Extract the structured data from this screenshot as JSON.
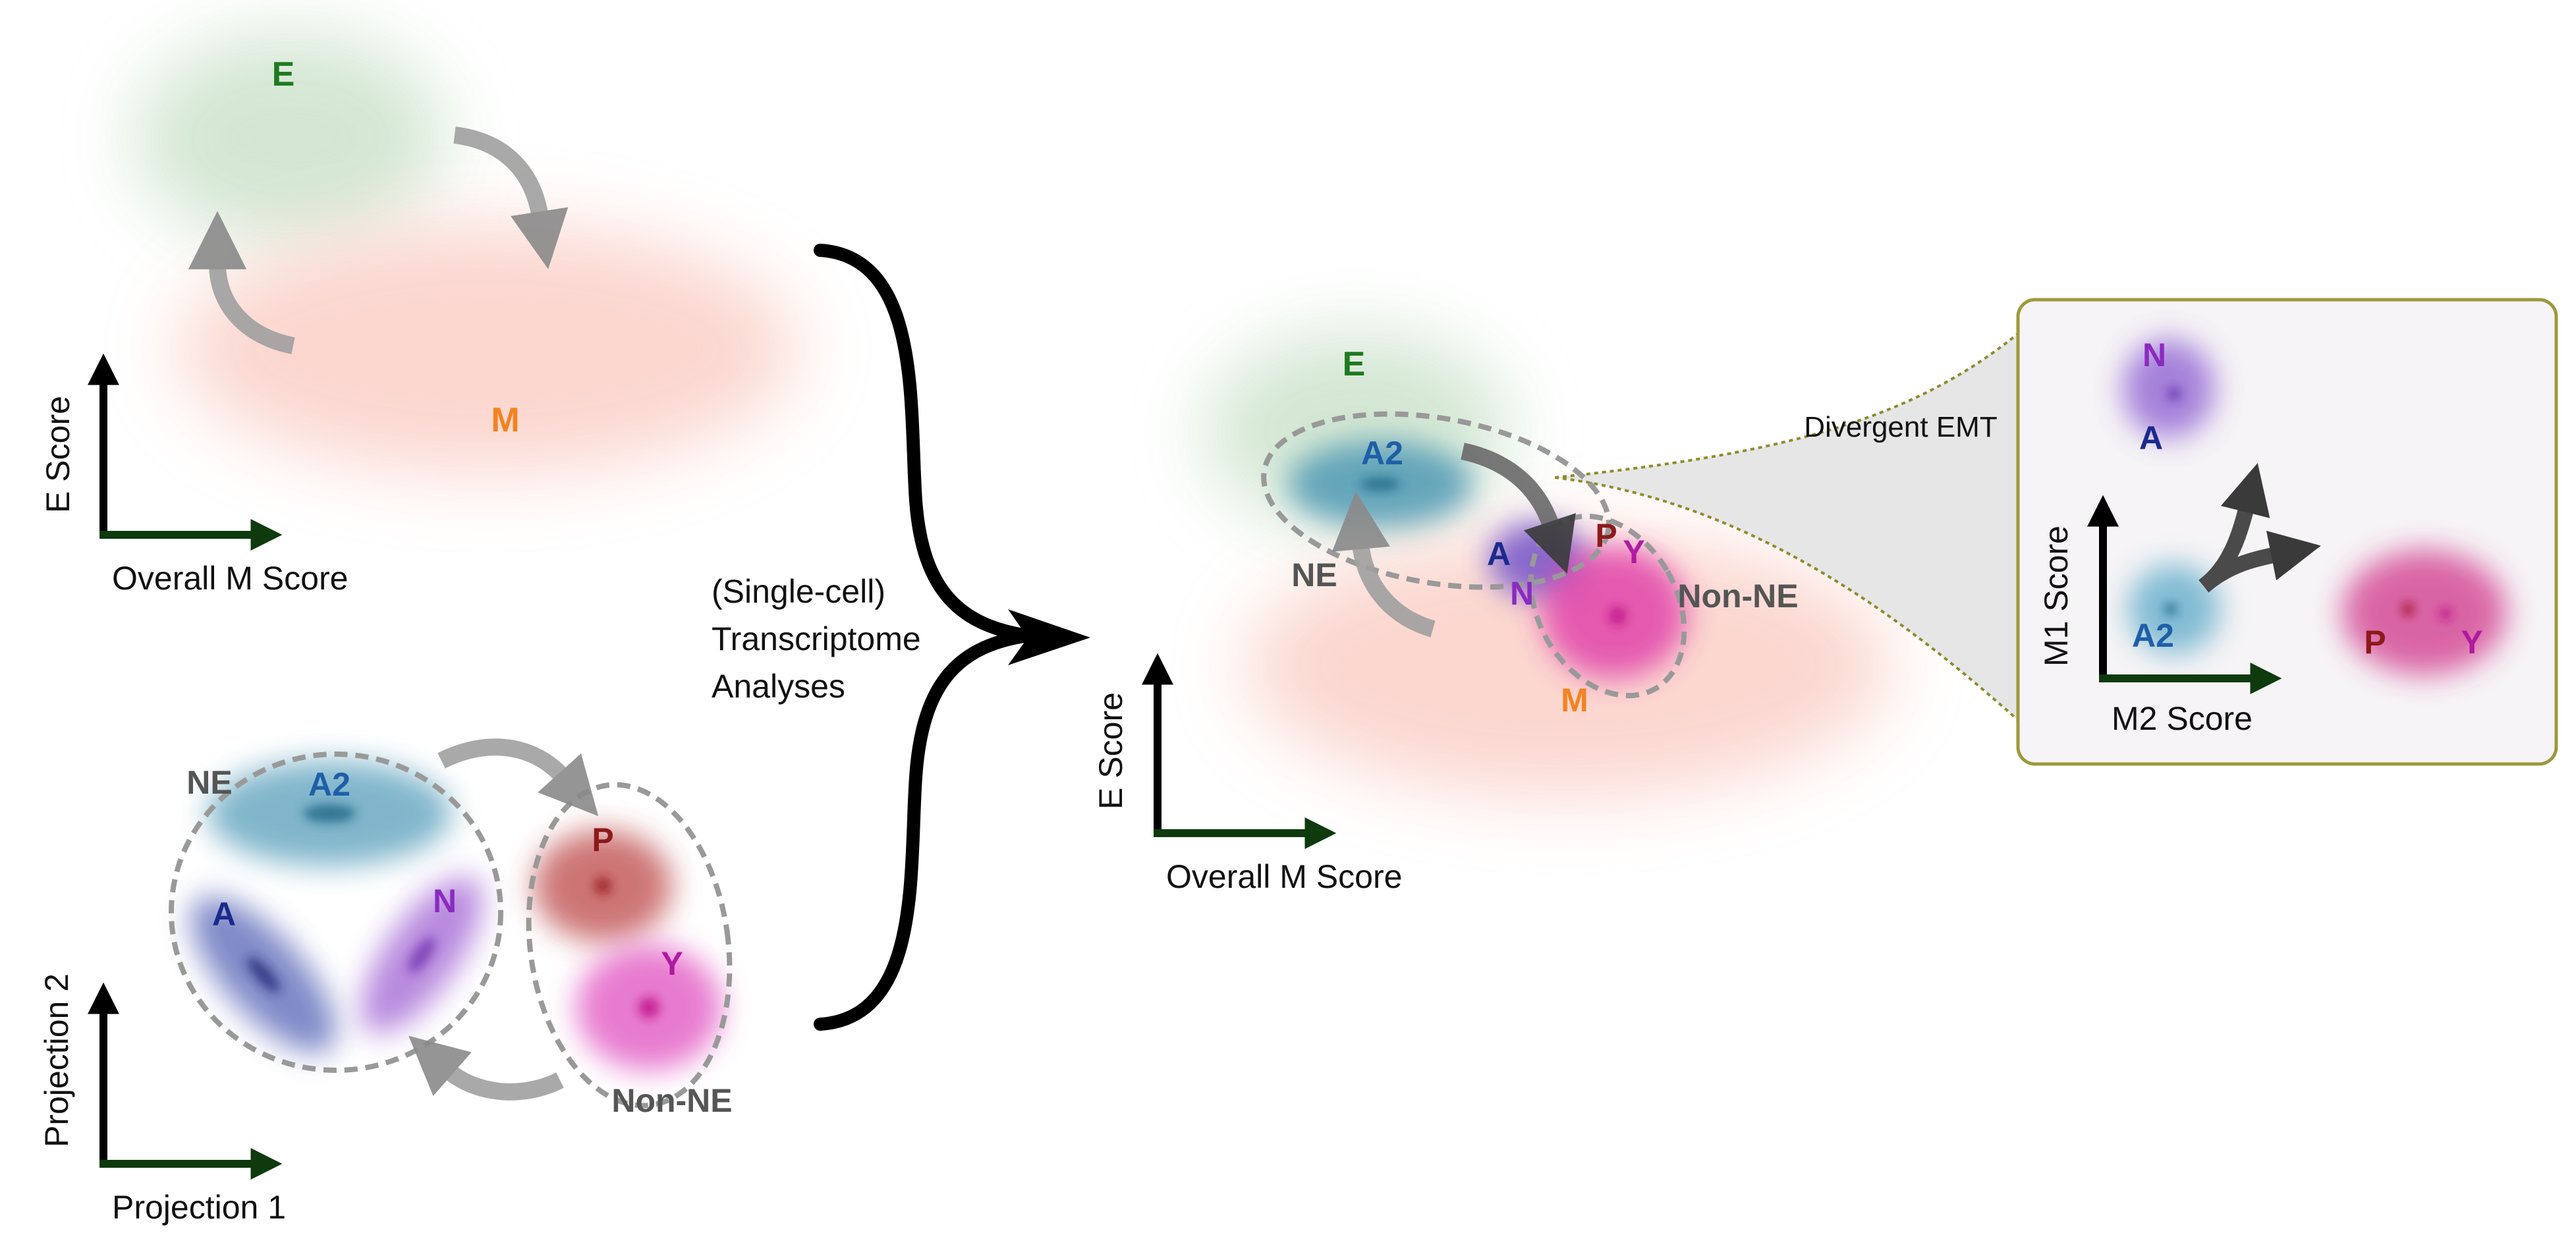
{
  "colors": {
    "axis": "#0e3a0e",
    "E": "#1f7a1f",
    "M": "#f5821f",
    "A2": "#1f5fa8",
    "A": "#1a2a8c",
    "N": "#8a2bc0",
    "P": "#8c1a1a",
    "Y": "#b01aa0",
    "grey_label": "#555555",
    "panel_border": "#9c9a3c"
  },
  "panel_top_left": {
    "label_E": "E",
    "label_M": "M",
    "y_axis": "E Score",
    "x_axis": "Overall M Score"
  },
  "panel_bottom_left": {
    "label_NE": "NE",
    "label_A2": "A2",
    "label_A": "A",
    "label_N": "N",
    "label_P": "P",
    "label_Y": "Y",
    "label_nonNE": "Non-NE",
    "y_axis": "Projection 2",
    "x_axis": "Projection 1"
  },
  "merge": {
    "line1": "(Single-cell)",
    "line2": "Transcriptome",
    "line3": "Analyses"
  },
  "panel_center": {
    "label_E": "E",
    "label_A2": "A2",
    "label_NE": "NE",
    "label_A": "A",
    "label_N": "N",
    "label_P": "P",
    "label_Y": "Y",
    "label_nonNE": "Non-NE",
    "label_M": "M",
    "y_axis": "E Score",
    "x_axis": "Overall M Score",
    "callout": "Divergent EMT"
  },
  "panel_inset": {
    "label_N": "N",
    "label_A": "A",
    "label_A2": "A2",
    "label_P": "P",
    "label_Y": "Y",
    "y_axis": "M1 Score",
    "x_axis": "M2 Score"
  }
}
